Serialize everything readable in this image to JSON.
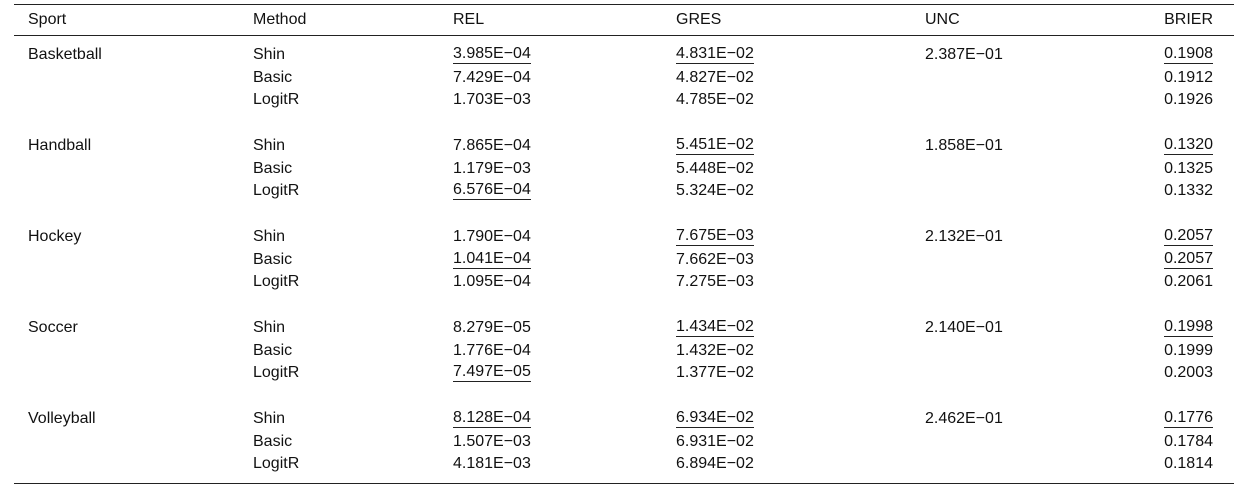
{
  "table": {
    "headers": [
      "Sport",
      "Method",
      "REL",
      "GRES",
      "UNC",
      "BRIER"
    ],
    "groups": [
      {
        "sport": "Basketball",
        "unc": "2.387E−01",
        "rows": [
          {
            "method": "Shin",
            "rel": "3.985E−04",
            "rel_best": true,
            "gres": "4.831E−02",
            "gres_best": true,
            "brier": "0.1908",
            "brier_best": true
          },
          {
            "method": "Basic",
            "rel": "7.429E−04",
            "gres": "4.827E−02",
            "brier": "0.1912"
          },
          {
            "method": "LogitR",
            "rel": "1.703E−03",
            "gres": "4.785E−02",
            "brier": "0.1926"
          }
        ]
      },
      {
        "sport": "Handball",
        "unc": "1.858E−01",
        "rows": [
          {
            "method": "Shin",
            "rel": "7.865E−04",
            "gres": "5.451E−02",
            "gres_best": true,
            "brier": "0.1320",
            "brier_best": true
          },
          {
            "method": "Basic",
            "rel": "1.179E−03",
            "gres": "5.448E−02",
            "brier": "0.1325"
          },
          {
            "method": "LogitR",
            "rel": "6.576E−04",
            "rel_best": true,
            "gres": "5.324E−02",
            "brier": "0.1332"
          }
        ]
      },
      {
        "sport": "Hockey",
        "unc": "2.132E−01",
        "rows": [
          {
            "method": "Shin",
            "rel": "1.790E−04",
            "gres": "7.675E−03",
            "gres_best": true,
            "brier": "0.2057",
            "brier_best": true
          },
          {
            "method": "Basic",
            "rel": "1.041E−04",
            "rel_best": true,
            "gres": "7.662E−03",
            "brier": "0.2057",
            "brier_best": true
          },
          {
            "method": "LogitR",
            "rel": "1.095E−04",
            "gres": "7.275E−03",
            "brier": "0.2061"
          }
        ]
      },
      {
        "sport": "Soccer",
        "unc": "2.140E−01",
        "rows": [
          {
            "method": "Shin",
            "rel": "8.279E−05",
            "gres": "1.434E−02",
            "gres_best": true,
            "brier": "0.1998",
            "brier_best": true
          },
          {
            "method": "Basic",
            "rel": "1.776E−04",
            "gres": "1.432E−02",
            "brier": "0.1999"
          },
          {
            "method": "LogitR",
            "rel": "7.497E−05",
            "rel_best": true,
            "gres": "1.377E−02",
            "brier": "0.2003"
          }
        ]
      },
      {
        "sport": "Volleyball",
        "unc": "2.462E−01",
        "rows": [
          {
            "method": "Shin",
            "rel": "8.128E−04",
            "rel_best": true,
            "gres": "6.934E−02",
            "gres_best": true,
            "brier": "0.1776",
            "brier_best": true
          },
          {
            "method": "Basic",
            "rel": "1.507E−03",
            "gres": "6.931E−02",
            "brier": "0.1784"
          },
          {
            "method": "LogitR",
            "rel": "4.181E−03",
            "gres": "6.894E−02",
            "brier": "0.1814"
          }
        ]
      }
    ]
  }
}
